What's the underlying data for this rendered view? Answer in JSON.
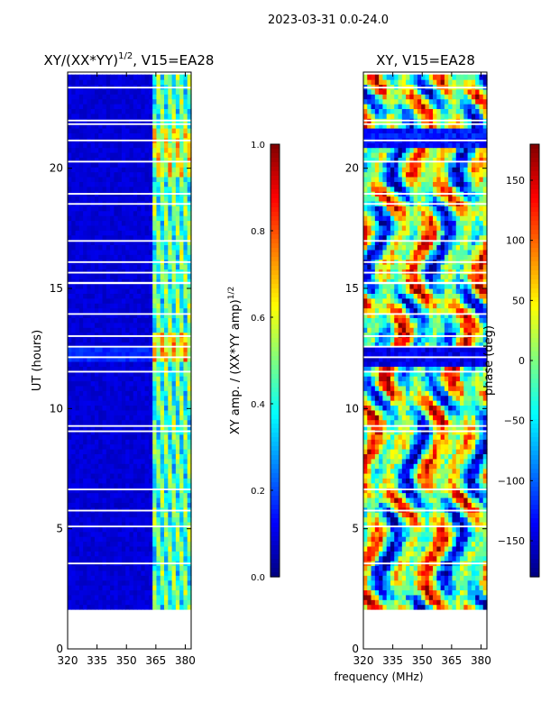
{
  "figure": {
    "suptitle": "2023-03-31 0.0-24.0",
    "xlabel": "frequency (MHz)"
  },
  "chart_data": [
    {
      "type": "heatmap",
      "title_main": "XY/(XX*YY)",
      "title_sup": "1/2",
      "title_tail": ", V15=EA28",
      "xlabel": "",
      "ylabel": "UT (hours)",
      "xlim": [
        320,
        383
      ],
      "ylim": [
        0,
        24
      ],
      "xticks": [
        "320",
        "335",
        "350",
        "365",
        "380"
      ],
      "xtick_values": [
        320,
        335,
        350,
        365,
        380
      ],
      "yticks": [
        "0",
        "5",
        "10",
        "15",
        "20"
      ],
      "ytick_values": [
        0,
        5,
        10,
        15,
        20
      ],
      "data_time_range": [
        1.65,
        23.9
      ],
      "colorbar": {
        "label_main": "XY amp. / (XX*YY amp)",
        "label_sup": "1/2",
        "range": [
          0.0,
          1.0
        ],
        "ticks": [
          "0.0",
          "0.2",
          "0.4",
          "0.6",
          "0.8",
          "1.0"
        ],
        "tick_values": [
          0.0,
          0.2,
          0.4,
          0.6,
          0.8,
          1.0
        ]
      }
    },
    {
      "type": "heatmap",
      "title": "XY, V15=EA28",
      "xlabel": "frequency (MHz)",
      "ylabel": "",
      "xlim": [
        320,
        383
      ],
      "ylim": [
        0,
        24
      ],
      "xticks": [
        "320",
        "335",
        "350",
        "365",
        "380"
      ],
      "xtick_values": [
        320,
        335,
        350,
        365,
        380
      ],
      "yticks": [
        "0",
        "5",
        "10",
        "15",
        "20"
      ],
      "ytick_values": [
        0,
        5,
        10,
        15,
        20
      ],
      "data_time_range": [
        1.65,
        23.9
      ],
      "colorbar": {
        "label": "phase (deg)",
        "range": [
          -180,
          180
        ],
        "ticks": [
          "150",
          "100",
          "50",
          "0",
          "−50",
          "−100",
          "−150"
        ],
        "tick_values": [
          150,
          100,
          50,
          0,
          -50,
          -100,
          -150
        ]
      }
    }
  ],
  "colors": {
    "cmap": [
      "#00007f",
      "#0000ff",
      "#007fff",
      "#00ffff",
      "#7fff7f",
      "#ffff00",
      "#ff7f00",
      "#ff0000",
      "#7f0000"
    ]
  }
}
